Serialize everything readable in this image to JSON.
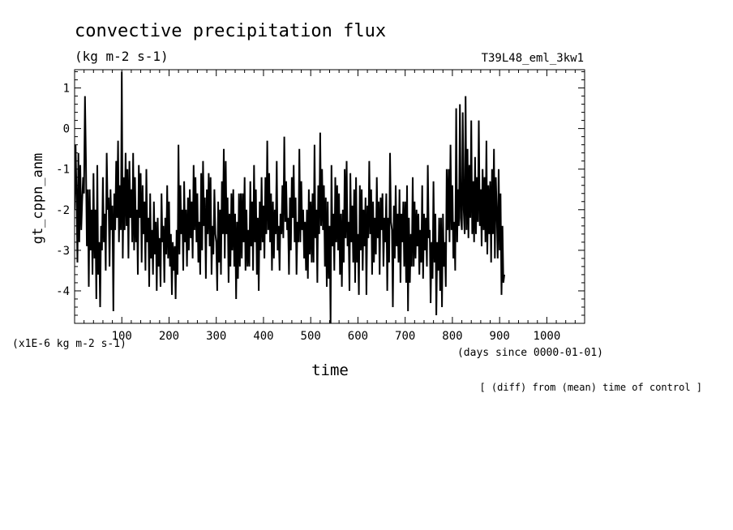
{
  "chart_data": {
    "type": "line",
    "title": "convective precipitation flux",
    "units": "(kg m-2 s-1)",
    "run_label": "T39L48_eml_3kw1",
    "ylabel": "gt_cppn_anm",
    "xlabel": "time",
    "y_scale_note": "(x1E-6 kg m-2 s-1)",
    "x_unit_note": "(days since 0000-01-01)",
    "footer_note": "[ (diff) from (mean) time of control ]",
    "xlim": [
      0,
      1080
    ],
    "ylim": [
      -4.8,
      1.45
    ],
    "x_ticks": [
      100,
      200,
      300,
      400,
      500,
      600,
      700,
      800,
      900,
      1000
    ],
    "y_ticks": [
      1,
      0,
      -1,
      -2,
      -3,
      -4
    ],
    "grid": false,
    "x_step_days": 2,
    "series": [
      {
        "values": [
          -2.0,
          -0.4,
          -1.5,
          -3.3,
          -0.6,
          -2.8,
          -0.9,
          -2.5,
          -1.8,
          -1.2,
          -1.6,
          0.8,
          -0.8,
          -2.9,
          -1.5,
          -3.9,
          -1.5,
          -3.0,
          -2.0,
          -3.6,
          -1.1,
          -3.2,
          -2.0,
          -4.2,
          -0.9,
          -3.6,
          -2.8,
          -4.4,
          -2.4,
          -3.0,
          -1.2,
          -2.8,
          -2.1,
          -3.5,
          -0.6,
          -2.0,
          -1.7,
          -3.4,
          -1.5,
          -2.5,
          -1.9,
          -4.5,
          -1.6,
          -2.5,
          -0.8,
          -2.2,
          -0.3,
          -2.8,
          -1.4,
          -2.5,
          1.4,
          -3.2,
          -1.2,
          -2.5,
          -0.6,
          -2.4,
          -1.0,
          -3.2,
          -0.8,
          -2.2,
          -1.5,
          -2.8,
          -0.6,
          -3.0,
          -1.2,
          -2.8,
          -2.0,
          -3.6,
          -0.9,
          -2.2,
          -1.1,
          -3.3,
          -1.4,
          -2.6,
          -1.8,
          -3.5,
          -1.0,
          -2.8,
          -2.2,
          -3.9,
          -1.6,
          -3.2,
          -2.5,
          -3.6,
          -1.8,
          -3.1,
          -2.3,
          -4.0,
          -2.2,
          -3.4,
          -2.7,
          -3.9,
          -1.6,
          -2.8,
          -2.4,
          -3.8,
          -2.2,
          -3.1,
          -1.4,
          -3.2,
          -1.8,
          -3.4,
          -2.6,
          -4.1,
          -2.8,
          -3.5,
          -2.9,
          -4.2,
          -2.5,
          -3.6,
          -0.4,
          -3.1,
          -1.4,
          -2.6,
          -2.0,
          -3.5,
          -1.3,
          -2.8,
          -2.0,
          -3.4,
          -1.7,
          -3.0,
          -1.5,
          -2.7,
          -1.8,
          -3.2,
          -0.9,
          -2.5,
          -1.2,
          -2.8,
          -1.6,
          -3.3,
          -2.3,
          -3.6,
          -1.1,
          -3.0,
          -0.8,
          -2.4,
          -1.7,
          -3.7,
          -1.5,
          -2.6,
          -1.1,
          -2.9,
          -1.2,
          -3.6,
          -2.4,
          -3.1,
          -1.5,
          -2.6,
          -2.8,
          -4.0,
          -1.8,
          -3.3,
          -2.0,
          -3.6,
          -1.3,
          -2.6,
          -0.5,
          -3.2,
          -0.8,
          -2.6,
          -1.7,
          -3.8,
          -2.1,
          -3.4,
          -1.6,
          -3.0,
          -1.5,
          -3.4,
          -2.1,
          -4.2,
          -2.3,
          -3.7,
          -1.6,
          -3.4,
          -1.6,
          -3.2,
          -1.6,
          -2.8,
          -1.2,
          -3.5,
          -2.0,
          -3.4,
          -2.5,
          -3.4,
          -1.3,
          -2.9,
          -1.8,
          -3.5,
          -0.9,
          -2.8,
          -1.5,
          -3.6,
          -2.2,
          -4.0,
          -1.8,
          -3.0,
          -1.2,
          -2.8,
          -1.9,
          -3.2,
          -1.2,
          -2.6,
          -0.3,
          -2.5,
          -1.1,
          -2.8,
          -1.6,
          -3.5,
          -1.8,
          -3.2,
          -2.0,
          -2.6,
          -0.8,
          -3.0,
          -2.4,
          -3.5,
          -2.1,
          -2.6,
          -1.4,
          -2.7,
          -0.2,
          -2.3,
          -1.3,
          -2.5,
          -2.2,
          -3.6,
          -1.7,
          -3.0,
          -1.2,
          -2.2,
          -0.9,
          -2.8,
          -1.7,
          -3.6,
          -2.3,
          -2.8,
          -0.5,
          -2.8,
          -1.3,
          -2.5,
          -2.0,
          -3.2,
          -2.3,
          -3.5,
          -2.0,
          -3.7,
          -1.5,
          -3.1,
          -1.8,
          -3.3,
          -1.6,
          -3.3,
          -0.4,
          -2.7,
          -2.0,
          -3.8,
          -1.4,
          -2.6,
          -0.1,
          -2.4,
          -1.0,
          -2.5,
          -1.4,
          -3.4,
          -1.7,
          -3.9,
          -1.8,
          -3.7,
          -2.4,
          -4.8,
          -0.9,
          -2.9,
          -2.1,
          -3.5,
          -1.2,
          -2.8,
          -1.4,
          -3.0,
          -1.6,
          -3.6,
          -2.1,
          -3.9,
          -2.0,
          -3.3,
          -1.0,
          -2.7,
          -0.8,
          -2.9,
          -2.3,
          -4.0,
          -1.1,
          -2.8,
          -1.9,
          -3.3,
          -1.5,
          -3.8,
          -1.2,
          -3.3,
          -2.6,
          -4.1,
          -1.4,
          -3.0,
          -1.5,
          -3.5,
          -2.0,
          -2.9,
          -1.7,
          -4.1,
          -1.9,
          -2.7,
          -0.8,
          -2.6,
          -1.5,
          -3.6,
          -1.8,
          -3.3,
          -2.2,
          -3.1,
          -1.2,
          -2.7,
          -1.8,
          -3.6,
          -1.7,
          -2.5,
          -1.6,
          -3.4,
          -2.2,
          -2.8,
          -1.6,
          -4.0,
          -2.2,
          -3.3,
          -0.6,
          -2.3,
          -2.5,
          -4.4,
          -1.9,
          -3.2,
          -1.4,
          -2.9,
          -2.1,
          -3.3,
          -1.5,
          -3.8,
          -2.1,
          -2.8,
          -1.8,
          -3.4,
          -1.8,
          -3.8,
          -1.4,
          -4.5,
          -2.2,
          -3.8,
          -2.6,
          -3.4,
          -1.2,
          -3.4,
          -1.8,
          -3.2,
          -2.0,
          -2.9,
          -2.1,
          -3.6,
          -2.5,
          -3.3,
          -1.4,
          -3.7,
          -2.1,
          -3.0,
          -2.2,
          -3.4,
          -0.9,
          -2.7,
          -2.5,
          -4.3,
          -2.8,
          -3.7,
          -1.3,
          -3.3,
          -2.1,
          -4.6,
          -2.8,
          -3.5,
          -2.2,
          -4.0,
          -2.2,
          -4.4,
          -2.1,
          -3.4,
          -2.8,
          -3.9,
          -1.0,
          -2.5,
          -1.0,
          -2.8,
          -0.4,
          -2.5,
          -1.4,
          -3.2,
          -2.3,
          -3.5,
          0.5,
          -2.8,
          -1.5,
          -2.4,
          0.6,
          -2.2,
          -2.5,
          0.4,
          -2.0,
          -2.6,
          0.8,
          -2.5,
          -0.5,
          -2.7,
          -0.9,
          -2.2,
          0.2,
          -2.6,
          -1.3,
          -2.8,
          -0.7,
          -2.6,
          -1.2,
          -2.3,
          0.2,
          -2.4,
          -1.5,
          -2.9,
          -1.0,
          -2.5,
          -1.2,
          -2.8,
          -0.3,
          -3.1,
          -1.4,
          -2.6,
          -1.3,
          -3.3,
          -1.0,
          -2.6,
          -0.5,
          -3.2,
          -1.2,
          -2.1,
          -3.2,
          -1.0,
          -3.0,
          -1.6,
          -4.1,
          -2.4,
          -3.8,
          -3.6
        ],
        "values_note": "Daily values read off the plot; first value at day 0, one value every 2 days."
      }
    ]
  }
}
